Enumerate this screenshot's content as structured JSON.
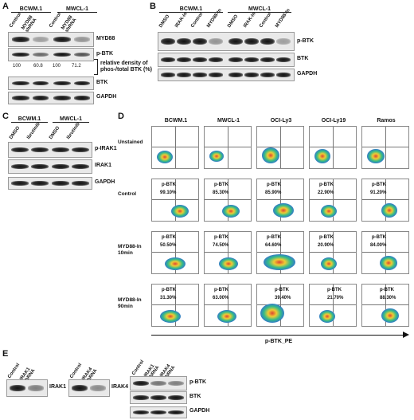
{
  "panelA": {
    "label": "A",
    "groups": [
      "BCWM.1",
      "MWCL-1"
    ],
    "lanes": [
      "Control",
      "MYD88 shRNA",
      "Control",
      "MYD88 shRNA"
    ],
    "rows": [
      "MYD88",
      "p-BTK",
      "BTK",
      "GAPDH"
    ],
    "densities": [
      "100",
      "60.8",
      "100",
      "71.2"
    ],
    "density_label": "relative density of phos-/total BTK (%)"
  },
  "panelB": {
    "label": "B",
    "groups": [
      "BCWM.1",
      "MWCL-1"
    ],
    "lanes": [
      "DMSO",
      "IRAK-In",
      "Control",
      "MYD88-In",
      "DMSO",
      "IRAK-In",
      "Control",
      "MYD88-In"
    ],
    "rows": [
      "p-BTK",
      "BTK",
      "GAPDH"
    ]
  },
  "panelC": {
    "label": "C",
    "groups": [
      "BCWM.1",
      "MWCL-1"
    ],
    "lanes": [
      "DMSO",
      "Ibrutinib",
      "DMSO",
      "Ibrutinib"
    ],
    "rows": [
      "p-IRAK1",
      "IRAK1",
      "GAPDH"
    ]
  },
  "panelD": {
    "label": "D",
    "columns": [
      "BCWM.1",
      "MWCL-1",
      "OCI-Ly3",
      "OCI-Ly19",
      "Ramos"
    ],
    "rows": [
      {
        "label": "Unstained",
        "values": [
          "",
          "",
          "",
          "",
          ""
        ]
      },
      {
        "label": "Control",
        "values": [
          "99.10%",
          "85.30%",
          "85.90%",
          "22.90%",
          "91.20%"
        ]
      },
      {
        "label": "MYD88-In 10min",
        "values": [
          "50.50%",
          "74.50%",
          "64.60%",
          "20.90%",
          "84.00%"
        ]
      },
      {
        "label": "MYD88-In 90min",
        "values": [
          "31.30%",
          "63.00%",
          "39.40%",
          "21.70%",
          "88.30%"
        ]
      }
    ],
    "marker": "p-BTK",
    "xaxis": "p-BTK_PE"
  },
  "panelE": {
    "label": "E",
    "blot1": {
      "lanes": [
        "Control",
        "IRAK1 shRNA"
      ],
      "row": "IRAK1"
    },
    "blot2": {
      "lanes": [
        "Control",
        "IRAK4 shRNA"
      ],
      "row": "IRAK4"
    },
    "blot3": {
      "lanes": [
        "Control",
        "IRAK1 shRNA",
        "IRAK4 shRNA"
      ],
      "rows": [
        "p-BTK",
        "BTK",
        "GAPDH"
      ]
    }
  }
}
